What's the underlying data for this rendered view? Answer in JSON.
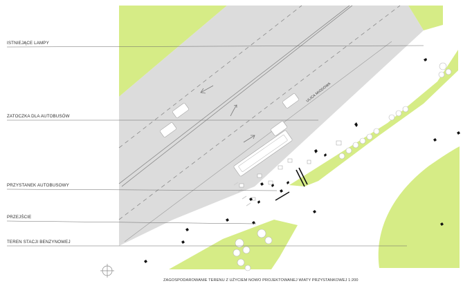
{
  "labels": {
    "lamps": "ISTNIEJĄCE LAMPY",
    "bay": "ZATOCZKA DLA AUTOBUSÓW",
    "stop": "PRZYSTANEK AUTOBUSOWY",
    "crossing": "PRZEJŚCIE",
    "station": "TEREN STACJI BENZYNOWEJ"
  },
  "street_name": "ULICA MIODOWA",
  "caption": "ZAGOSPODAROWANIE TERENU Z UŻYCIEM NOWO PROJEKTOWANEJ WIATY PRZYSTANKOWEJ 1:200",
  "colors": {
    "grass": "#d6ec86",
    "road": "#dcdcdc",
    "marking": "#8a8a8a",
    "leader": "#666666",
    "background": "#ffffff"
  },
  "icons": [
    "north-arrow-icon",
    "lamp-icon",
    "tree-icon",
    "car-icon",
    "bus-shelter-icon"
  ]
}
